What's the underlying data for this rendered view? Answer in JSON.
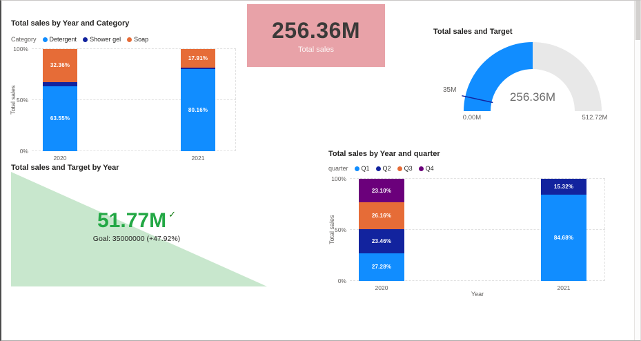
{
  "page": {
    "background": "#FFFFFF"
  },
  "chart_data": [
    {
      "id": "sales-by-year-and-category",
      "type": "bar",
      "variant": "stacked-100",
      "title": "Total sales by Year and Category",
      "legend_title": "Category",
      "legend_position": "top-left",
      "categories": [
        "2020",
        "2021"
      ],
      "series": [
        {
          "name": "Detergent",
          "color": "#118DFF",
          "values": [
            63.55,
            80.16
          ],
          "labels": [
            "63.55%",
            "80.16%"
          ]
        },
        {
          "name": "Shower gel",
          "color": "#12239E",
          "values": [
            4.09,
            1.93
          ],
          "labels": [
            "",
            ""
          ]
        },
        {
          "name": "Soap",
          "color": "#E66C37",
          "values": [
            32.36,
            17.91
          ],
          "labels": [
            "32.36%",
            "17.91%"
          ]
        }
      ],
      "xlabel": "",
      "ylabel": "Total sales",
      "yticks": [
        "0%",
        "50%",
        "100%"
      ],
      "ylim": [
        0,
        100
      ],
      "grid": "dashed-horizontal"
    },
    {
      "id": "total-sales-card",
      "type": "card",
      "value": "256.36M",
      "label": "Total sales",
      "background": "#E8A2A8",
      "value_color": "#3B3A39",
      "label_color": "#FBF4F3"
    },
    {
      "id": "sales-and-target-gauge",
      "type": "gauge",
      "title": "Total sales and Target",
      "min_label": "0.00M",
      "max_label": "512.72M",
      "callout_value": "256.36M",
      "target_label": "35M",
      "fill_fraction": 0.5,
      "target_fraction": 0.068,
      "fill_color": "#118DFF",
      "track_color": "#E8E8E8",
      "target_color": "#12239E",
      "callout_color": "#6B6B6B"
    },
    {
      "id": "sales-and-target-kpi",
      "type": "kpi",
      "title": "Total sales and Target by Year",
      "value": "51.77M",
      "goal_text": "Goal: 35000000 (+47.92%)",
      "status_icon": "✓",
      "value_color": "#23A845",
      "trend_fill": "#C8E7CD"
    },
    {
      "id": "sales-by-year-and-quarter",
      "type": "bar",
      "variant": "stacked-100",
      "title": "Total sales by Year and quarter",
      "legend_title": "quarter",
      "legend_position": "top-left",
      "categories": [
        "2020",
        "2021"
      ],
      "series": [
        {
          "name": "Q1",
          "color": "#118DFF",
          "values": [
            27.28,
            84.68
          ],
          "labels": [
            "27.28%",
            "84.68%"
          ]
        },
        {
          "name": "Q2",
          "color": "#12239E",
          "values": [
            23.46,
            15.32
          ],
          "labels": [
            "23.46%",
            "15.32%"
          ]
        },
        {
          "name": "Q3",
          "color": "#E66C37",
          "values": [
            26.16,
            0
          ],
          "labels": [
            "26.16%",
            ""
          ]
        },
        {
          "name": "Q4",
          "color": "#6B007B",
          "values": [
            23.1,
            0
          ],
          "labels": [
            "23.10%",
            ""
          ]
        }
      ],
      "xlabel": "Year",
      "ylabel": "Total sales",
      "yticks": [
        "0%",
        "50%",
        "100%"
      ],
      "ylim": [
        0,
        100
      ],
      "grid": "dashed-horizontal"
    }
  ]
}
